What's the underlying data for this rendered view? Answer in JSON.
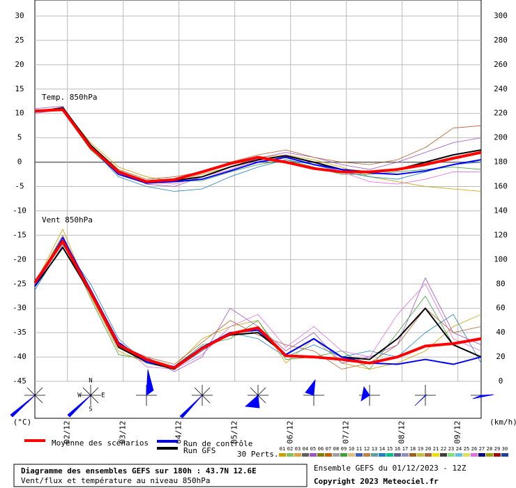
{
  "chart_data": {
    "type": "line",
    "panel_labels": [
      "Temp. 850hPa",
      "Vent 850hPa"
    ],
    "y_unit": "(°C)",
    "y2_unit": "(km/h)",
    "x": [
      10,
      22,
      34,
      46,
      58,
      70,
      82,
      94,
      106,
      118,
      130,
      142,
      154,
      166,
      178,
      190,
      202
    ],
    "xlim": [
      10,
      202
    ],
    "xticks": [
      {
        "value": 24,
        "label": "02/12"
      },
      {
        "value": 48,
        "label": "03/12"
      },
      {
        "value": 72,
        "label": "04/12"
      },
      {
        "value": 96,
        "label": "05/12"
      },
      {
        "value": 120,
        "label": "06/12"
      },
      {
        "value": 144,
        "label": "07/12"
      },
      {
        "value": 168,
        "label": "08/12"
      },
      {
        "value": 192,
        "label": "09/12"
      }
    ],
    "ylim": [
      -45,
      30
    ],
    "yticks": [
      -45,
      -40,
      -35,
      -30,
      -25,
      -20,
      -15,
      -10,
      -5,
      0,
      5,
      10,
      15,
      20,
      25,
      30
    ],
    "y2lim": [
      0,
      300
    ],
    "y2ticks": [
      0,
      20,
      40,
      60,
      80,
      100,
      120,
      140,
      160,
      180,
      200,
      220,
      240,
      260,
      280,
      300
    ],
    "grid": true,
    "series": [
      {
        "name": "01",
        "color": "#c8a000",
        "width": 0.8,
        "values": [
          10,
          11,
          4,
          -1,
          -3,
          -4,
          -2.5,
          -1,
          1,
          1.5,
          0.5,
          -1,
          -3,
          -4,
          -5,
          -5.5,
          -6
        ]
      },
      {
        "name": "05",
        "color": "#a050c0",
        "width": 0.8,
        "values": [
          11,
          11.5,
          3,
          -2,
          -4.5,
          -5,
          -3,
          -1,
          0.8,
          2,
          1,
          -0.5,
          -1.5,
          0,
          2,
          4,
          5
        ]
      },
      {
        "name": "09",
        "color": "#40a040",
        "width": 0.8,
        "values": [
          10.5,
          10.5,
          2.5,
          -2.5,
          -4,
          -4,
          -3.8,
          -2,
          -0.5,
          0.5,
          -1,
          -2.5,
          -2.5,
          -2,
          -1.5,
          -1,
          -1.5
        ]
      },
      {
        "name": "14",
        "color": "#2080c0",
        "width": 0.8,
        "values": [
          10,
          11,
          3,
          -3,
          -5,
          -6,
          -5.5,
          -3,
          -1,
          0.5,
          -0.5,
          -2,
          -3,
          -3.5,
          -2,
          -0.5,
          0
        ]
      },
      {
        "name": "20",
        "color": "#b06030",
        "width": 0.8,
        "values": [
          10.5,
          11,
          3.5,
          -1.5,
          -3.5,
          -3,
          -2,
          0,
          1.5,
          2.5,
          1,
          0,
          -0.5,
          0.5,
          3,
          7,
          7.5
        ]
      },
      {
        "name": "26",
        "color": "#e070e0",
        "width": 0.8,
        "values": [
          10,
          10.8,
          2.8,
          -2,
          -4,
          -4.5,
          -3,
          -1.5,
          0.3,
          1.5,
          0,
          -2,
          -4,
          -4.5,
          -3.5,
          -2,
          -2
        ]
      },
      {
        "name": "01",
        "color": "#c8a000",
        "width": 0.8,
        "axis": "y2",
        "values": [
          80,
          125,
          70,
          25,
          15,
          12,
          35,
          45,
          50,
          15,
          35,
          15,
          10,
          15,
          25,
          45,
          55
        ]
      },
      {
        "name": "05",
        "color": "#a050c0",
        "width": 0.8,
        "axis": "y2",
        "values": [
          78,
          110,
          75,
          30,
          20,
          8,
          20,
          60,
          45,
          25,
          40,
          15,
          20,
          30,
          85,
          40,
          30
        ]
      },
      {
        "name": "09",
        "color": "#40a040",
        "width": 0.8,
        "axis": "y2",
        "values": [
          82,
          118,
          68,
          22,
          18,
          12,
          30,
          35,
          50,
          18,
          20,
          25,
          10,
          40,
          70,
          30,
          35
        ]
      },
      {
        "name": "14",
        "color": "#2080c0",
        "width": 0.8,
        "axis": "y2",
        "values": [
          75,
          112,
          80,
          35,
          15,
          10,
          25,
          40,
          35,
          20,
          30,
          20,
          25,
          20,
          40,
          55,
          15
        ]
      },
      {
        "name": "20",
        "color": "#b06030",
        "width": 0.8,
        "axis": "y2",
        "values": [
          80,
          120,
          72,
          28,
          20,
          14,
          32,
          50,
          38,
          30,
          25,
          10,
          15,
          30,
          60,
          40,
          45
        ]
      },
      {
        "name": "26",
        "color": "#e070e0",
        "width": 0.8,
        "axis": "y2",
        "values": [
          77,
          115,
          76,
          32,
          12,
          10,
          22,
          45,
          55,
          28,
          45,
          25,
          20,
          55,
          80,
          35,
          25
        ]
      },
      {
        "name": "Run GFS",
        "color": "#000000",
        "width": 2,
        "values": [
          10.3,
          11.2,
          3.5,
          -1.8,
          -4,
          -3.8,
          -3,
          -1,
          0.5,
          1.3,
          0,
          -1.5,
          -2,
          -1.5,
          0,
          1.5,
          2.5
        ]
      },
      {
        "name": "Run de contrôle",
        "color": "#0000ff",
        "width": 2,
        "values": [
          10.5,
          11,
          3,
          -2.5,
          -4.3,
          -4,
          -3.5,
          -1.8,
          0,
          1,
          -0.5,
          -1.5,
          -2.2,
          -2.5,
          -1.8,
          -0.5,
          0.5
        ]
      },
      {
        "name": "Moyenne des scénarios",
        "color": "#ff0000",
        "width": 4,
        "values": [
          10.5,
          10.8,
          3,
          -2,
          -4,
          -3.6,
          -2,
          -0.3,
          1,
          0,
          -1.3,
          -2,
          -2,
          -1.5,
          -0.5,
          0.8,
          2
        ]
      },
      {
        "name": "Run GFS",
        "color": "#000000",
        "width": 2,
        "axis": "y2",
        "values": [
          78,
          110,
          72,
          28,
          16,
          10,
          28,
          38,
          40,
          22,
          35,
          20,
          18,
          35,
          60,
          30,
          20
        ]
      },
      {
        "name": "Run de contrôle",
        "color": "#0000ff",
        "width": 2,
        "axis": "y2",
        "values": [
          78,
          118,
          75,
          32,
          16,
          12,
          28,
          40,
          42,
          22,
          35,
          20,
          15,
          14,
          18,
          14,
          20
        ]
      },
      {
        "name": "Moyenne des scénarios",
        "color": "#ff0000",
        "width": 4,
        "axis": "y2",
        "values": [
          81,
          115,
          73,
          30,
          18,
          11,
          27,
          39,
          44,
          21,
          20,
          18,
          15,
          20,
          29,
          31,
          35
        ]
      }
    ],
    "legend": [
      {
        "name": "Moyenne des scénarios",
        "color": "#ff0000"
      },
      {
        "name": "Run de contrôle",
        "color": "#0000ff"
      },
      {
        "name": "Run GFS",
        "color": "#000000"
      }
    ],
    "perturbations_label": "30 Perts.",
    "perturbations": [
      {
        "name": "01",
        "color": "#c8a000"
      },
      {
        "name": "02",
        "color": "#80c060"
      },
      {
        "name": "03",
        "color": "#e0a040"
      },
      {
        "name": "04",
        "color": "#606060"
      },
      {
        "name": "05",
        "color": "#a050c0"
      },
      {
        "name": "06",
        "color": "#808000"
      },
      {
        "name": "07",
        "color": "#c06000"
      },
      {
        "name": "08",
        "color": "#a0a0a0"
      },
      {
        "name": "09",
        "color": "#40a040"
      },
      {
        "name": "10",
        "color": "#e0c080"
      },
      {
        "name": "11",
        "color": "#4060c0"
      },
      {
        "name": "12",
        "color": "#c08040"
      },
      {
        "name": "13",
        "color": "#60a0a0"
      },
      {
        "name": "14",
        "color": "#2080c0"
      },
      {
        "name": "15",
        "color": "#00c080"
      },
      {
        "name": "16",
        "color": "#606090"
      },
      {
        "name": "17",
        "color": "#9090c0"
      },
      {
        "name": "18",
        "color": "#a06020"
      },
      {
        "name": "19",
        "color": "#c0c040"
      },
      {
        "name": "20",
        "color": "#b06030"
      },
      {
        "name": "21",
        "color": "#f0e000"
      },
      {
        "name": "22",
        "color": "#404040"
      },
      {
        "name": "23",
        "color": "#80e080"
      },
      {
        "name": "24",
        "color": "#60c0e0"
      },
      {
        "name": "25",
        "color": "#e0e060"
      },
      {
        "name": "26",
        "color": "#e070e0"
      },
      {
        "name": "27",
        "color": "#000080"
      },
      {
        "name": "28",
        "color": "#a0a000"
      },
      {
        "name": "29",
        "color": "#a00000"
      },
      {
        "name": "30",
        "color": "#2040a0"
      }
    ],
    "title": "Diagramme des ensembles GEFS sur 180h : 43.7N 12.6E",
    "subtitle": "Vent/flux et température au niveau 850hPa",
    "run_info": "Ensemble GEFS du 01/12/2023 - 12Z",
    "copyright": "Copyright 2023 Meteociel.fr"
  }
}
